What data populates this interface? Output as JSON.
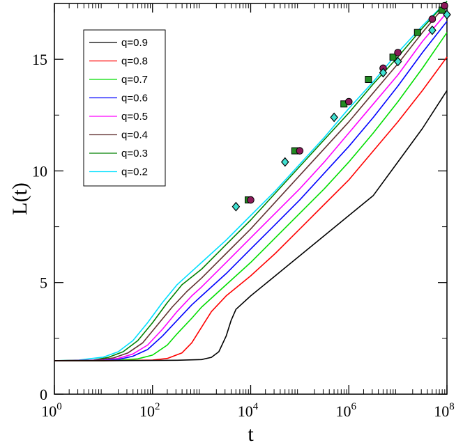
{
  "chart_data": {
    "type": "line",
    "title": "",
    "xlabel": "t",
    "ylabel": "L(t)",
    "xscale": "log10",
    "xlim": [
      1,
      100000000
    ],
    "ylim": [
      0,
      17.5
    ],
    "x_ticks": [
      {
        "base": "10",
        "exp": "0",
        "value": 1
      },
      {
        "base": "10",
        "exp": "2",
        "value": 100
      },
      {
        "base": "10",
        "exp": "4",
        "value": 10000
      },
      {
        "base": "10",
        "exp": "6",
        "value": 1000000
      },
      {
        "base": "10",
        "exp": "8",
        "value": 100000000
      }
    ],
    "y_ticks": [
      {
        "label": "0",
        "value": 0
      },
      {
        "label": "5",
        "value": 5
      },
      {
        "label": "10",
        "value": 10
      },
      {
        "label": "15",
        "value": 15
      }
    ],
    "legend_position": "top-left",
    "series": [
      {
        "name": "q=0.9",
        "color": "#000000",
        "points": [
          [
            0,
            1.5
          ],
          [
            1,
            1.5
          ],
          [
            2,
            1.51
          ],
          [
            2.5,
            1.52
          ],
          [
            3,
            1.55
          ],
          [
            3.2,
            1.65
          ],
          [
            3.35,
            1.9
          ],
          [
            3.5,
            2.6
          ],
          [
            3.6,
            3.3
          ],
          [
            3.7,
            3.8
          ],
          [
            4,
            4.4
          ],
          [
            4.5,
            5.3
          ],
          [
            5,
            6.2
          ],
          [
            5.5,
            7.1
          ],
          [
            6,
            8.0
          ],
          [
            6.5,
            8.9
          ],
          [
            7,
            10.4
          ],
          [
            7.5,
            11.9
          ],
          [
            8,
            13.6
          ]
        ]
      },
      {
        "name": "q=0.8",
        "color": "#ff0000",
        "points": [
          [
            0,
            1.5
          ],
          [
            1,
            1.5
          ],
          [
            1.5,
            1.51
          ],
          [
            2,
            1.53
          ],
          [
            2.3,
            1.6
          ],
          [
            2.6,
            1.85
          ],
          [
            2.8,
            2.3
          ],
          [
            3,
            3.0
          ],
          [
            3.2,
            3.7
          ],
          [
            3.5,
            4.4
          ],
          [
            4,
            5.3
          ],
          [
            4.5,
            6.3
          ],
          [
            5,
            7.4
          ],
          [
            5.5,
            8.5
          ],
          [
            6,
            9.6
          ],
          [
            6.5,
            10.9
          ],
          [
            7,
            12.2
          ],
          [
            7.5,
            13.6
          ],
          [
            8,
            15.1
          ]
        ]
      },
      {
        "name": "q=0.7",
        "color": "#00dd00",
        "points": [
          [
            0,
            1.5
          ],
          [
            1,
            1.5
          ],
          [
            1.3,
            1.52
          ],
          [
            1.7,
            1.58
          ],
          [
            2,
            1.75
          ],
          [
            2.3,
            2.2
          ],
          [
            2.5,
            2.7
          ],
          [
            2.8,
            3.4
          ],
          [
            3,
            3.9
          ],
          [
            3.5,
            4.9
          ],
          [
            4,
            5.9
          ],
          [
            4.5,
            7.0
          ],
          [
            5,
            8.1
          ],
          [
            5.5,
            9.2
          ],
          [
            6,
            10.4
          ],
          [
            6.5,
            11.7
          ],
          [
            7,
            13.1
          ],
          [
            7.5,
            14.6
          ],
          [
            8,
            16.2
          ]
        ]
      },
      {
        "name": "q=0.6",
        "color": "#0000ff",
        "points": [
          [
            0,
            1.5
          ],
          [
            1,
            1.51
          ],
          [
            1.3,
            1.55
          ],
          [
            1.6,
            1.7
          ],
          [
            1.9,
            2.0
          ],
          [
            2.2,
            2.6
          ],
          [
            2.5,
            3.3
          ],
          [
            2.8,
            4.0
          ],
          [
            3,
            4.4
          ],
          [
            3.5,
            5.4
          ],
          [
            4,
            6.5
          ],
          [
            4.5,
            7.6
          ],
          [
            5,
            8.7
          ],
          [
            5.5,
            9.9
          ],
          [
            6,
            11.1
          ],
          [
            6.5,
            12.4
          ],
          [
            7,
            13.8
          ],
          [
            7.5,
            15.3
          ],
          [
            8,
            16.7
          ]
        ]
      },
      {
        "name": "q=0.5",
        "color": "#ff00ff",
        "points": [
          [
            0,
            1.5
          ],
          [
            1,
            1.52
          ],
          [
            1.3,
            1.6
          ],
          [
            1.6,
            1.8
          ],
          [
            1.9,
            2.2
          ],
          [
            2.2,
            2.9
          ],
          [
            2.5,
            3.7
          ],
          [
            2.8,
            4.4
          ],
          [
            3,
            4.8
          ],
          [
            3.5,
            5.9
          ],
          [
            4,
            7.0
          ],
          [
            4.5,
            8.1
          ],
          [
            5,
            9.2
          ],
          [
            5.5,
            10.4
          ],
          [
            6,
            11.7
          ],
          [
            6.5,
            13.0
          ],
          [
            7,
            14.3
          ],
          [
            7.5,
            15.8
          ],
          [
            8,
            17.1
          ]
        ]
      },
      {
        "name": "q=0.4",
        "color": "#603030",
        "points": [
          [
            0,
            1.5
          ],
          [
            0.8,
            1.52
          ],
          [
            1.2,
            1.62
          ],
          [
            1.5,
            1.85
          ],
          [
            1.8,
            2.3
          ],
          [
            2.1,
            3.1
          ],
          [
            2.4,
            3.9
          ],
          [
            2.7,
            4.6
          ],
          [
            3,
            5.2
          ],
          [
            3.5,
            6.3
          ],
          [
            4,
            7.4
          ],
          [
            4.5,
            8.6
          ],
          [
            5,
            9.8
          ],
          [
            5.5,
            11.0
          ],
          [
            6,
            12.2
          ],
          [
            6.5,
            13.5
          ],
          [
            7,
            14.8
          ],
          [
            7.5,
            16.2
          ],
          [
            8,
            17.5
          ]
        ]
      },
      {
        "name": "q=0.3",
        "color": "#008000",
        "points": [
          [
            0,
            1.5
          ],
          [
            0.8,
            1.53
          ],
          [
            1.1,
            1.65
          ],
          [
            1.4,
            1.9
          ],
          [
            1.7,
            2.4
          ],
          [
            2,
            3.2
          ],
          [
            2.3,
            4.1
          ],
          [
            2.6,
            4.9
          ],
          [
            3,
            5.6
          ],
          [
            3.5,
            6.7
          ],
          [
            4,
            7.8
          ],
          [
            4.5,
            9.0
          ],
          [
            5,
            10.2
          ],
          [
            5.5,
            11.4
          ],
          [
            6,
            12.6
          ],
          [
            6.5,
            13.9
          ],
          [
            7,
            15.1
          ],
          [
            7.5,
            16.4
          ],
          [
            8,
            17.6
          ]
        ]
      },
      {
        "name": "q=0.2",
        "color": "#00e0ff",
        "points": [
          [
            0,
            1.5
          ],
          [
            0.5,
            1.53
          ],
          [
            1,
            1.66
          ],
          [
            1.3,
            1.9
          ],
          [
            1.6,
            2.4
          ],
          [
            1.9,
            3.2
          ],
          [
            2.2,
            4.1
          ],
          [
            2.5,
            4.9
          ],
          [
            2.8,
            5.5
          ],
          [
            3,
            5.9
          ],
          [
            3.5,
            6.9
          ],
          [
            4,
            8.0
          ],
          [
            4.5,
            9.1
          ],
          [
            5,
            10.3
          ],
          [
            5.5,
            11.5
          ],
          [
            6,
            12.8
          ],
          [
            6.5,
            14.0
          ],
          [
            7,
            15.3
          ],
          [
            7.5,
            16.5
          ],
          [
            8,
            17.6
          ]
        ]
      }
    ],
    "markers": [
      {
        "shape": "square",
        "fill": "#228b22",
        "points": [
          [
            3.95,
            8.7
          ],
          [
            4.9,
            10.9
          ],
          [
            5.9,
            13.0
          ],
          [
            6.4,
            14.1
          ],
          [
            6.9,
            15.1
          ],
          [
            7.4,
            16.2
          ],
          [
            7.9,
            17.2
          ]
        ]
      },
      {
        "shape": "circle",
        "fill": "#8b1a5a",
        "points": [
          [
            4,
            8.7
          ],
          [
            5,
            10.9
          ],
          [
            6,
            13.1
          ],
          [
            6.7,
            14.6
          ],
          [
            7,
            15.3
          ],
          [
            7.7,
            16.8
          ],
          [
            7.95,
            17.4
          ]
        ]
      },
      {
        "shape": "diamond",
        "fill": "#40e0d0",
        "points": [
          [
            3.7,
            8.4
          ],
          [
            4.7,
            10.4
          ],
          [
            5.7,
            12.4
          ],
          [
            6.7,
            14.4
          ],
          [
            7,
            14.9
          ],
          [
            7.7,
            16.3
          ],
          [
            8,
            17.0
          ]
        ]
      }
    ]
  }
}
